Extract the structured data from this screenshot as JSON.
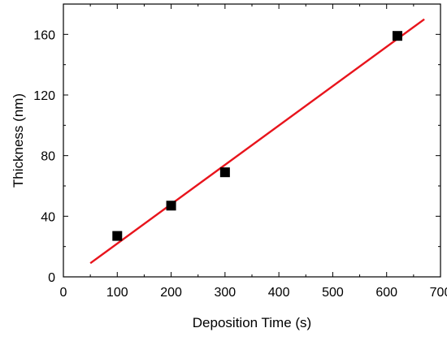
{
  "chart_data": {
    "type": "scatter",
    "title": "",
    "xlabel": "Deposition Time (s)",
    "ylabel": "Thickness (nm)",
    "xlim": [
      0,
      700
    ],
    "ylim": [
      0,
      180
    ],
    "x_ticks": [
      0,
      100,
      200,
      300,
      400,
      500,
      600,
      700
    ],
    "x_tick_labels": [
      "0",
      "100",
      "200",
      "300",
      "400",
      "500",
      "600",
      "700"
    ],
    "y_ticks": [
      0,
      40,
      80,
      120,
      160
    ],
    "y_tick_labels": [
      "0",
      "40",
      "80",
      "120",
      "160"
    ],
    "grid": false,
    "legend": "none",
    "series": [
      {
        "kind": "scatter",
        "marker": "square",
        "color": "#000000",
        "points": [
          {
            "x": 100,
            "y": 27
          },
          {
            "x": 200,
            "y": 47
          },
          {
            "x": 300,
            "y": 69
          },
          {
            "x": 620,
            "y": 159
          }
        ]
      },
      {
        "kind": "line",
        "color": "#e8141c",
        "points": [
          {
            "x": 50,
            "y": 9
          },
          {
            "x": 670,
            "y": 170
          }
        ]
      }
    ]
  }
}
